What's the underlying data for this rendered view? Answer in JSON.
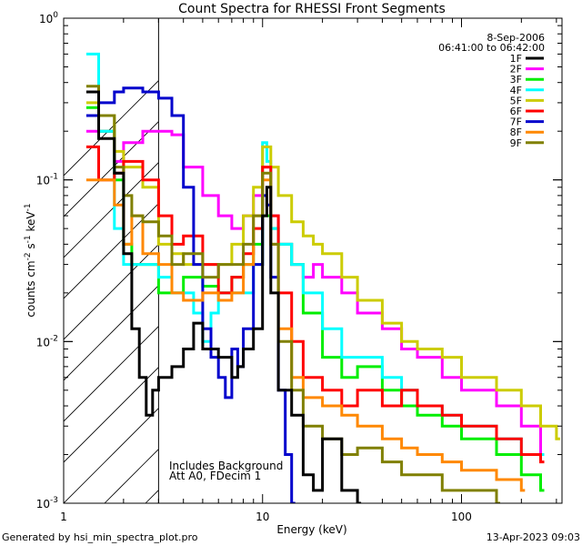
{
  "chart_data": {
    "type": "line",
    "title": "Count Spectra for RHESSI Front Segments",
    "xlabel": "Energy (keV)",
    "ylabel": {
      "prefix": "counts cm",
      "exp1": "-2",
      "mid": " s",
      "exp2": "-1",
      "mid2": " keV",
      "exp3": "-1"
    },
    "x_scale": "log",
    "y_scale": "log",
    "xlim": [
      1,
      320
    ],
    "ylim": [
      0.001,
      1
    ],
    "x_ticks": [
      {
        "value": 1,
        "label": "1"
      },
      {
        "value": 10,
        "label": "10"
      },
      {
        "value": 100,
        "label": "100"
      }
    ],
    "y_ticks": [
      {
        "value": 1,
        "base": "10",
        "exp": "0"
      },
      {
        "value": 0.1,
        "base": "10",
        "exp": "-1"
      },
      {
        "value": 0.01,
        "base": "10",
        "exp": "-2"
      },
      {
        "value": 0.001,
        "base": "10",
        "exp": "-3"
      }
    ],
    "date": "8-Sep-2006",
    "time_range": "06:41:00 to 06:42:00",
    "hatch_limit_kev": 3,
    "annotations": [
      "Includes Background",
      "Att A0, FDecim 1"
    ],
    "series": [
      {
        "name": "1F",
        "color": "#000000",
        "points": [
          [
            1.3,
            0.35
          ],
          [
            1.5,
            0.18
          ],
          [
            1.8,
            0.11
          ],
          [
            2.0,
            0.035
          ],
          [
            2.2,
            0.012
          ],
          [
            2.4,
            0.006
          ],
          [
            2.6,
            0.0035
          ],
          [
            2.8,
            0.005
          ],
          [
            3.0,
            0.006
          ],
          [
            3.5,
            0.007
          ],
          [
            4.0,
            0.009
          ],
          [
            4.5,
            0.013
          ],
          [
            5.0,
            0.009
          ],
          [
            6.0,
            0.008
          ],
          [
            7.0,
            0.006
          ],
          [
            7.5,
            0.007
          ],
          [
            8.0,
            0.009
          ],
          [
            9.0,
            0.012
          ],
          [
            10.0,
            0.06
          ],
          [
            10.5,
            0.09
          ],
          [
            11.0,
            0.02
          ],
          [
            12,
            0.005
          ],
          [
            14,
            0.0035
          ],
          [
            16,
            0.0015
          ],
          [
            18,
            0.0012
          ],
          [
            20,
            0.0025
          ],
          [
            25,
            0.0012
          ],
          [
            30,
            0.001
          ]
        ]
      },
      {
        "name": "2F",
        "color": "#ff00ff",
        "points": [
          [
            1.3,
            0.2
          ],
          [
            1.5,
            0.2
          ],
          [
            1.8,
            0.13
          ],
          [
            2.0,
            0.17
          ],
          [
            2.5,
            0.2
          ],
          [
            3.0,
            0.2
          ],
          [
            3.5,
            0.19
          ],
          [
            4.0,
            0.12
          ],
          [
            5.0,
            0.08
          ],
          [
            6.0,
            0.06
          ],
          [
            7.0,
            0.05
          ],
          [
            8.0,
            0.06
          ],
          [
            9.0,
            0.08
          ],
          [
            10.0,
            0.12
          ],
          [
            11.0,
            0.06
          ],
          [
            12,
            0.04
          ],
          [
            14,
            0.03
          ],
          [
            16,
            0.025
          ],
          [
            18,
            0.03
          ],
          [
            20,
            0.025
          ],
          [
            25,
            0.02
          ],
          [
            30,
            0.015
          ],
          [
            40,
            0.012
          ],
          [
            50,
            0.009
          ],
          [
            60,
            0.008
          ],
          [
            80,
            0.006
          ],
          [
            100,
            0.005
          ],
          [
            150,
            0.004
          ],
          [
            200,
            0.003
          ],
          [
            250,
            0.002
          ]
        ]
      },
      {
        "name": "3F",
        "color": "#00ee00",
        "points": [
          [
            1.3,
            0.28
          ],
          [
            1.5,
            0.2
          ],
          [
            1.8,
            0.1
          ],
          [
            2.0,
            0.04
          ],
          [
            2.2,
            0.03
          ],
          [
            2.5,
            0.03
          ],
          [
            3.0,
            0.02
          ],
          [
            3.5,
            0.02
          ],
          [
            4.0,
            0.025
          ],
          [
            5.0,
            0.022
          ],
          [
            6.0,
            0.02
          ],
          [
            7.0,
            0.025
          ],
          [
            8.0,
            0.03
          ],
          [
            9.0,
            0.04
          ],
          [
            10.0,
            0.06
          ],
          [
            11.0,
            0.05
          ],
          [
            12,
            0.04
          ],
          [
            14,
            0.03
          ],
          [
            16,
            0.015
          ],
          [
            20,
            0.008
          ],
          [
            25,
            0.006
          ],
          [
            30,
            0.007
          ],
          [
            40,
            0.005
          ],
          [
            50,
            0.004
          ],
          [
            60,
            0.0035
          ],
          [
            80,
            0.003
          ],
          [
            100,
            0.0025
          ],
          [
            150,
            0.002
          ],
          [
            200,
            0.0015
          ],
          [
            250,
            0.0012
          ]
        ]
      },
      {
        "name": "4F",
        "color": "#00ffff",
        "points": [
          [
            1.3,
            0.6
          ],
          [
            1.5,
            0.2
          ],
          [
            1.8,
            0.05
          ],
          [
            2.0,
            0.03
          ],
          [
            2.2,
            0.03
          ],
          [
            2.6,
            0.03
          ],
          [
            3.0,
            0.025
          ],
          [
            3.5,
            0.02
          ],
          [
            4.0,
            0.02
          ],
          [
            4.5,
            0.015
          ],
          [
            5.0,
            0.01
          ],
          [
            5.5,
            0.015
          ],
          [
            6.0,
            0.02
          ],
          [
            7.0,
            0.02
          ],
          [
            8.0,
            0.02
          ],
          [
            9.0,
            0.03
          ],
          [
            10.0,
            0.17
          ],
          [
            10.5,
            0.13
          ],
          [
            11.0,
            0.05
          ],
          [
            12,
            0.04
          ],
          [
            14,
            0.03
          ],
          [
            16,
            0.02
          ],
          [
            20,
            0.012
          ],
          [
            25,
            0.008
          ],
          [
            30,
            0.008
          ],
          [
            40,
            0.006
          ],
          [
            50,
            0.005
          ],
          [
            60,
            0.004
          ],
          [
            80,
            0.0035
          ],
          [
            100,
            0.003
          ],
          [
            150,
            0.0025
          ],
          [
            200,
            0.002
          ],
          [
            250,
            0.002
          ]
        ]
      },
      {
        "name": "5F",
        "color": "#cccc00",
        "points": [
          [
            1.3,
            0.3
          ],
          [
            1.5,
            0.25
          ],
          [
            1.8,
            0.15
          ],
          [
            2.0,
            0.12
          ],
          [
            2.5,
            0.09
          ],
          [
            3.0,
            0.04
          ],
          [
            3.5,
            0.035
          ],
          [
            4.0,
            0.03
          ],
          [
            5.0,
            0.03
          ],
          [
            6.0,
            0.03
          ],
          [
            7.0,
            0.04
          ],
          [
            8.0,
            0.06
          ],
          [
            9.0,
            0.09
          ],
          [
            10.0,
            0.16
          ],
          [
            11.0,
            0.12
          ],
          [
            12,
            0.08
          ],
          [
            14,
            0.055
          ],
          [
            16,
            0.045
          ],
          [
            18,
            0.04
          ],
          [
            20,
            0.035
          ],
          [
            25,
            0.025
          ],
          [
            30,
            0.018
          ],
          [
            40,
            0.013
          ],
          [
            50,
            0.01
          ],
          [
            60,
            0.009
          ],
          [
            80,
            0.008
          ],
          [
            100,
            0.006
          ],
          [
            150,
            0.005
          ],
          [
            200,
            0.004
          ],
          [
            250,
            0.003
          ],
          [
            300,
            0.0025
          ]
        ]
      },
      {
        "name": "6F",
        "color": "#ff0000",
        "points": [
          [
            1.3,
            0.16
          ],
          [
            1.5,
            0.1
          ],
          [
            1.8,
            0.11
          ],
          [
            2.0,
            0.13
          ],
          [
            2.5,
            0.1
          ],
          [
            3.0,
            0.06
          ],
          [
            3.5,
            0.04
          ],
          [
            4.0,
            0.045
          ],
          [
            5.0,
            0.03
          ],
          [
            6.0,
            0.02
          ],
          [
            7.0,
            0.025
          ],
          [
            8.0,
            0.035
          ],
          [
            9.0,
            0.05
          ],
          [
            10.0,
            0.12
          ],
          [
            11.0,
            0.06
          ],
          [
            12,
            0.02
          ],
          [
            14,
            0.01
          ],
          [
            16,
            0.006
          ],
          [
            20,
            0.005
          ],
          [
            25,
            0.004
          ],
          [
            30,
            0.005
          ],
          [
            40,
            0.004
          ],
          [
            50,
            0.005
          ],
          [
            60,
            0.004
          ],
          [
            80,
            0.0035
          ],
          [
            100,
            0.003
          ],
          [
            150,
            0.0025
          ],
          [
            200,
            0.002
          ],
          [
            250,
            0.0018
          ]
        ]
      },
      {
        "name": "7F",
        "color": "#0000cc",
        "points": [
          [
            1.3,
            0.25
          ],
          [
            1.5,
            0.3
          ],
          [
            1.8,
            0.35
          ],
          [
            2.0,
            0.37
          ],
          [
            2.5,
            0.35
          ],
          [
            3.0,
            0.32
          ],
          [
            3.5,
            0.25
          ],
          [
            4.0,
            0.09
          ],
          [
            4.5,
            0.03
          ],
          [
            5.0,
            0.012
          ],
          [
            5.5,
            0.008
          ],
          [
            6.0,
            0.006
          ],
          [
            6.5,
            0.0045
          ],
          [
            7.0,
            0.009
          ],
          [
            7.5,
            0.007
          ],
          [
            8.0,
            0.012
          ],
          [
            9.0,
            0.03
          ],
          [
            10.0,
            0.08
          ],
          [
            10.5,
            0.07
          ],
          [
            11.0,
            0.025
          ],
          [
            12,
            0.005
          ],
          [
            13,
            0.002
          ],
          [
            14,
            0.001
          ]
        ]
      },
      {
        "name": "8F",
        "color": "#ff8800",
        "points": [
          [
            1.3,
            0.1
          ],
          [
            1.5,
            0.1
          ],
          [
            1.8,
            0.07
          ],
          [
            2.0,
            0.04
          ],
          [
            2.2,
            0.06
          ],
          [
            2.5,
            0.035
          ],
          [
            3.0,
            0.03
          ],
          [
            3.5,
            0.02
          ],
          [
            4.0,
            0.018
          ],
          [
            5.0,
            0.02
          ],
          [
            6.0,
            0.018
          ],
          [
            7.0,
            0.02
          ],
          [
            8.0,
            0.03
          ],
          [
            9.0,
            0.06
          ],
          [
            10.0,
            0.1
          ],
          [
            11.0,
            0.04
          ],
          [
            12,
            0.012
          ],
          [
            14,
            0.006
          ],
          [
            16,
            0.0045
          ],
          [
            20,
            0.004
          ],
          [
            25,
            0.0035
          ],
          [
            30,
            0.003
          ],
          [
            40,
            0.0025
          ],
          [
            50,
            0.0022
          ],
          [
            60,
            0.002
          ],
          [
            80,
            0.0018
          ],
          [
            100,
            0.0016
          ],
          [
            150,
            0.0014
          ],
          [
            200,
            0.0012
          ]
        ]
      },
      {
        "name": "9F",
        "color": "#808000",
        "points": [
          [
            1.3,
            0.38
          ],
          [
            1.5,
            0.25
          ],
          [
            1.8,
            0.12
          ],
          [
            2.0,
            0.08
          ],
          [
            2.2,
            0.06
          ],
          [
            2.5,
            0.055
          ],
          [
            3.0,
            0.045
          ],
          [
            3.5,
            0.03
          ],
          [
            4.0,
            0.035
          ],
          [
            5.0,
            0.025
          ],
          [
            6.0,
            0.03
          ],
          [
            7.0,
            0.03
          ],
          [
            8.0,
            0.04
          ],
          [
            9.0,
            0.06
          ],
          [
            10.0,
            0.11
          ],
          [
            11.0,
            0.04
          ],
          [
            12,
            0.01
          ],
          [
            14,
            0.005
          ],
          [
            16,
            0.003
          ],
          [
            20,
            0.0025
          ],
          [
            25,
            0.002
          ],
          [
            30,
            0.0022
          ],
          [
            40,
            0.0018
          ],
          [
            50,
            0.0015
          ],
          [
            60,
            0.0015
          ],
          [
            80,
            0.0012
          ],
          [
            100,
            0.0012
          ],
          [
            150,
            0.001
          ]
        ]
      }
    ]
  },
  "footer": {
    "left": "Generated by hsi_min_spectra_plot.pro",
    "right": "13-Apr-2023 09:03"
  }
}
